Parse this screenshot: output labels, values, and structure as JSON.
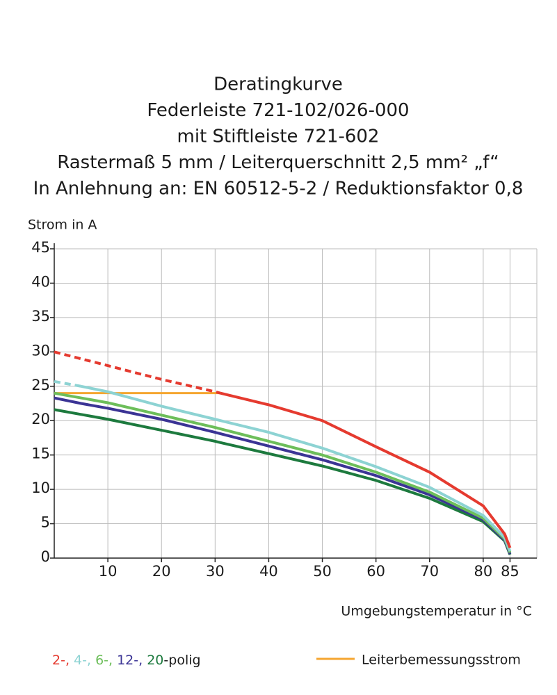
{
  "chart_data": {
    "type": "line",
    "title": [
      "Deratingkurve",
      "Federleiste 721-102/026-000",
      "mit Stiftleiste 721-602",
      "Rastermaß 5 mm / Leiterquerschnitt 2,5 mm² „f“",
      "In Anlehnung an: EN 60512-5-2 / Reduktionsfaktor 0,8"
    ],
    "y_label": "Strom in A",
    "x_label": "Umgebungstemperatur in °C",
    "x": [
      0,
      5,
      10,
      20,
      30,
      31,
      40,
      50,
      60,
      70,
      80,
      84,
      85
    ],
    "series": [
      {
        "name": "2-,",
        "color": "#e53a2f",
        "dashed_until_x": 31,
        "values": [
          30,
          29,
          28,
          26,
          24.2,
          24,
          22.3,
          20,
          16.2,
          12.5,
          7.6,
          3.5,
          1.5
        ]
      },
      {
        "name": "4-,",
        "color": "#8dd3d3",
        "dashed_until_x": 5,
        "values": [
          25.7,
          25,
          24.2,
          22.1,
          20.2,
          20,
          18.3,
          16,
          13.3,
          10.3,
          6.2,
          3,
          1
        ]
      },
      {
        "name": "6-,",
        "color": "#6dbe5a",
        "values": [
          24,
          23.3,
          22.6,
          20.8,
          19,
          18.8,
          17,
          15,
          12.5,
          9.6,
          5.8,
          2.8,
          0.8
        ]
      },
      {
        "name": "12-,",
        "color": "#3b3495",
        "values": [
          23.3,
          22.5,
          21.8,
          20.2,
          18.3,
          18.1,
          16.3,
          14.3,
          12,
          9.2,
          5.6,
          2.6,
          0.6
        ]
      },
      {
        "name": "20",
        "color": "#1d7a3e",
        "values": [
          21.6,
          20.9,
          20.2,
          18.6,
          17,
          16.8,
          15.2,
          13.4,
          11.3,
          8.7,
          5.3,
          2.5,
          0.5
        ]
      }
    ],
    "legend_suffix": "-polig",
    "rated_current": {
      "name": "Leiterbemessungsstrom",
      "color": "#f5a630",
      "x": [
        0,
        31
      ],
      "values": [
        24,
        24
      ]
    },
    "xlim": [
      0,
      90
    ],
    "ylim": [
      0,
      45
    ],
    "xticks": [
      10,
      20,
      30,
      40,
      50,
      60,
      70,
      80,
      85
    ],
    "yticks": [
      0,
      5,
      10,
      15,
      20,
      25,
      30,
      35,
      40,
      45
    ],
    "grid": true
  }
}
